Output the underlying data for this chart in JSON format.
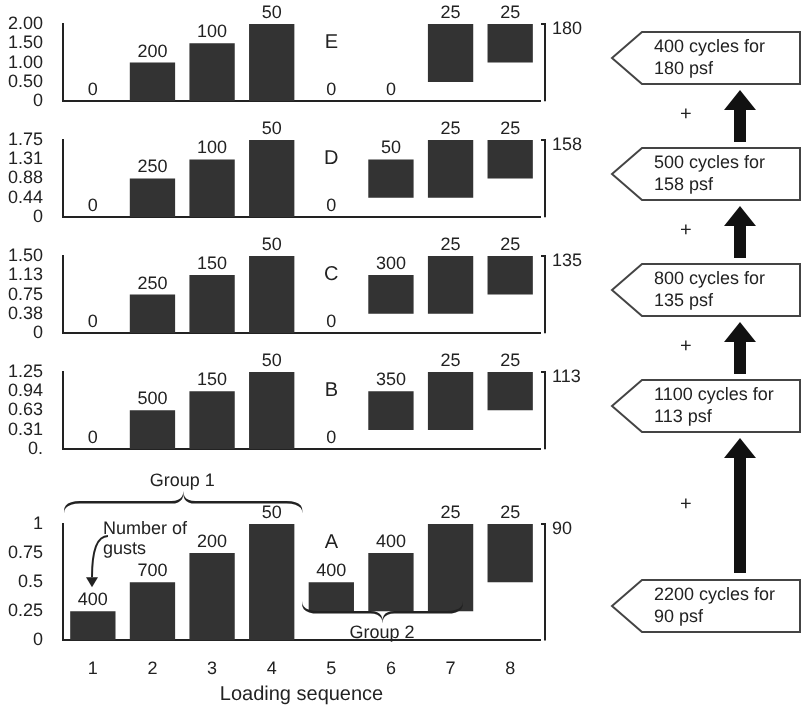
{
  "chart_data": [
    {
      "type": "bar",
      "categories": [
        "1",
        "2",
        "3",
        "4",
        "5",
        "6",
        "7",
        "8"
      ],
      "base": [
        null,
        0,
        0,
        0,
        null,
        null,
        0.5,
        1
      ],
      "values": [
        0,
        1,
        1.5,
        2,
        0,
        0,
        1.5,
        1
      ],
      "color": "#333333",
      "ylim": [
        0,
        2
      ],
      "yticks": [
        0,
        {
          "value": 0.5,
          "label": "0.50"
        },
        {
          "value": 1,
          "label": "1.00"
        },
        {
          "value": 1.5,
          "label": "1.50"
        },
        {
          "value": 2,
          "label": "2.00"
        }
      ],
      "tick_labels": "y",
      "grid": false,
      "annotations": [
        "E",
        "180",
        "400 cycles for 180 psf",
        "+",
        {
          "text": "0",
          "x": "1",
          "y": 0
        },
        {
          "text": "200",
          "x": "2",
          "y": 1
        },
        {
          "text": "100",
          "x": "3",
          "y": 1.5
        },
        {
          "text": "50",
          "x": "4",
          "y": 2
        },
        {
          "text": "0",
          "x": "5",
          "y": 0
        },
        {
          "text": "0",
          "x": "6",
          "y": 0
        },
        {
          "text": "25",
          "x": "7",
          "y": 2
        },
        {
          "text": "25",
          "x": "8",
          "y": 2
        }
      ]
    },
    {
      "type": "bar",
      "categories": [
        "1",
        "2",
        "3",
        "4",
        "5",
        "6",
        "7",
        "8"
      ],
      "base": [
        null,
        0,
        0,
        0,
        null,
        0.44,
        0.44,
        0.88
      ],
      "values": [
        0,
        0.88,
        1.31,
        1.75,
        0,
        0.87,
        1.31,
        0.87
      ],
      "color": "#333333",
      "ylim": [
        0,
        1.75
      ],
      "yticks": [
        0,
        0.44,
        0.88,
        1.31,
        1.75
      ],
      "tick_labels": "y",
      "grid": false,
      "annotations": [
        "D",
        "158",
        "500 cycles for 158 psf",
        "+",
        {
          "text": "0",
          "x": "1",
          "y": 0
        },
        {
          "text": "250",
          "x": "2",
          "y": 0.88
        },
        {
          "text": "100",
          "x": "3",
          "y": 1.31
        },
        {
          "text": "50",
          "x": "4",
          "y": 1.75
        },
        {
          "text": "0",
          "x": "5",
          "y": 0
        },
        {
          "text": "50",
          "x": "6",
          "y": 1.31
        },
        {
          "text": "25",
          "x": "7",
          "y": 1.75
        },
        {
          "text": "25",
          "x": "8",
          "y": 1.75
        }
      ]
    },
    {
      "type": "bar",
      "categories": [
        "1",
        "2",
        "3",
        "4",
        "5",
        "6",
        "7",
        "8"
      ],
      "base": [
        null,
        0,
        0,
        0,
        null,
        0.38,
        0.38,
        0.75
      ],
      "values": [
        0,
        0.75,
        1.13,
        1.5,
        0,
        0.75,
        1.12,
        0.75
      ],
      "color": "#333333",
      "ylim": [
        0,
        1.5
      ],
      "yticks": [
        0,
        0.38,
        0.75,
        1.13,
        {
          "value": 1.5,
          "label": "1.50"
        }
      ],
      "tick_labels": "y",
      "grid": false,
      "annotations": [
        "C",
        "135",
        "800 cycles for 135 psf",
        "+",
        {
          "text": "0",
          "x": "1",
          "y": 0
        },
        {
          "text": "250",
          "x": "2",
          "y": 0.75
        },
        {
          "text": "150",
          "x": "3",
          "y": 1.13
        },
        {
          "text": "50",
          "x": "4",
          "y": 1.5
        },
        {
          "text": "0",
          "x": "5",
          "y": 0
        },
        {
          "text": "300",
          "x": "6",
          "y": 1.13
        },
        {
          "text": "25",
          "x": "7",
          "y": 1.5
        },
        {
          "text": "25",
          "x": "8",
          "y": 1.5
        }
      ]
    },
    {
      "type": "bar",
      "categories": [
        "1",
        "2",
        "3",
        "4",
        "5",
        "6",
        "7",
        "8"
      ],
      "base": [
        null,
        0,
        0,
        0,
        null,
        0.31,
        0.31,
        0.63
      ],
      "values": [
        0,
        0.63,
        0.94,
        1.25,
        0,
        0.63,
        0.94,
        0.62
      ],
      "color": "#333333",
      "ylim": [
        0,
        1.25
      ],
      "yticks": [
        {
          "value": 0,
          "label": "0."
        },
        0.31,
        0.63,
        0.94,
        1.25
      ],
      "tick_labels": "y",
      "grid": false,
      "annotations": [
        "B",
        "113",
        "1100 cycles for 113 psf",
        "+",
        {
          "text": "0",
          "x": "1",
          "y": 0
        },
        {
          "text": "500",
          "x": "2",
          "y": 0.63
        },
        {
          "text": "150",
          "x": "3",
          "y": 0.94
        },
        {
          "text": "50",
          "x": "4",
          "y": 1.25
        },
        {
          "text": "0",
          "x": "5",
          "y": 0
        },
        {
          "text": "350",
          "x": "6",
          "y": 0.94
        },
        {
          "text": "25",
          "x": "7",
          "y": 1.25
        },
        {
          "text": "25",
          "x": "8",
          "y": 1.25
        }
      ]
    },
    {
      "type": "bar",
      "categories": [
        "1",
        "2",
        "3",
        "4",
        "5",
        "6",
        "7",
        "8"
      ],
      "base": [
        0,
        0,
        0,
        0,
        0.25,
        0.25,
        0.25,
        0.5
      ],
      "values": [
        0.25,
        0.5,
        0.75,
        1,
        0.25,
        0.5,
        0.75,
        0.5
      ],
      "color": "#333333",
      "ylim": [
        0,
        1
      ],
      "yticks": [
        0,
        0.25,
        0.5,
        0.75,
        1
      ],
      "xlabel": "Loading sequence",
      "grid": false,
      "annotations": [
        "A",
        "90",
        "2200 cycles for 90 psf",
        "Number of gusts",
        "Group 1",
        "Group 2",
        {
          "text": "400",
          "x": "1",
          "y": 0.25
        },
        {
          "text": "700",
          "x": "2",
          "y": 0.5
        },
        {
          "text": "200",
          "x": "3",
          "y": 0.75
        },
        {
          "text": "50",
          "x": "4",
          "y": 1
        },
        {
          "text": "400",
          "x": "5",
          "y": 0.5
        },
        {
          "text": "400",
          "x": "6",
          "y": 0.75
        },
        {
          "text": "25",
          "x": "7",
          "y": 1
        },
        {
          "text": "25",
          "x": "8",
          "y": 1
        }
      ]
    }
  ]
}
